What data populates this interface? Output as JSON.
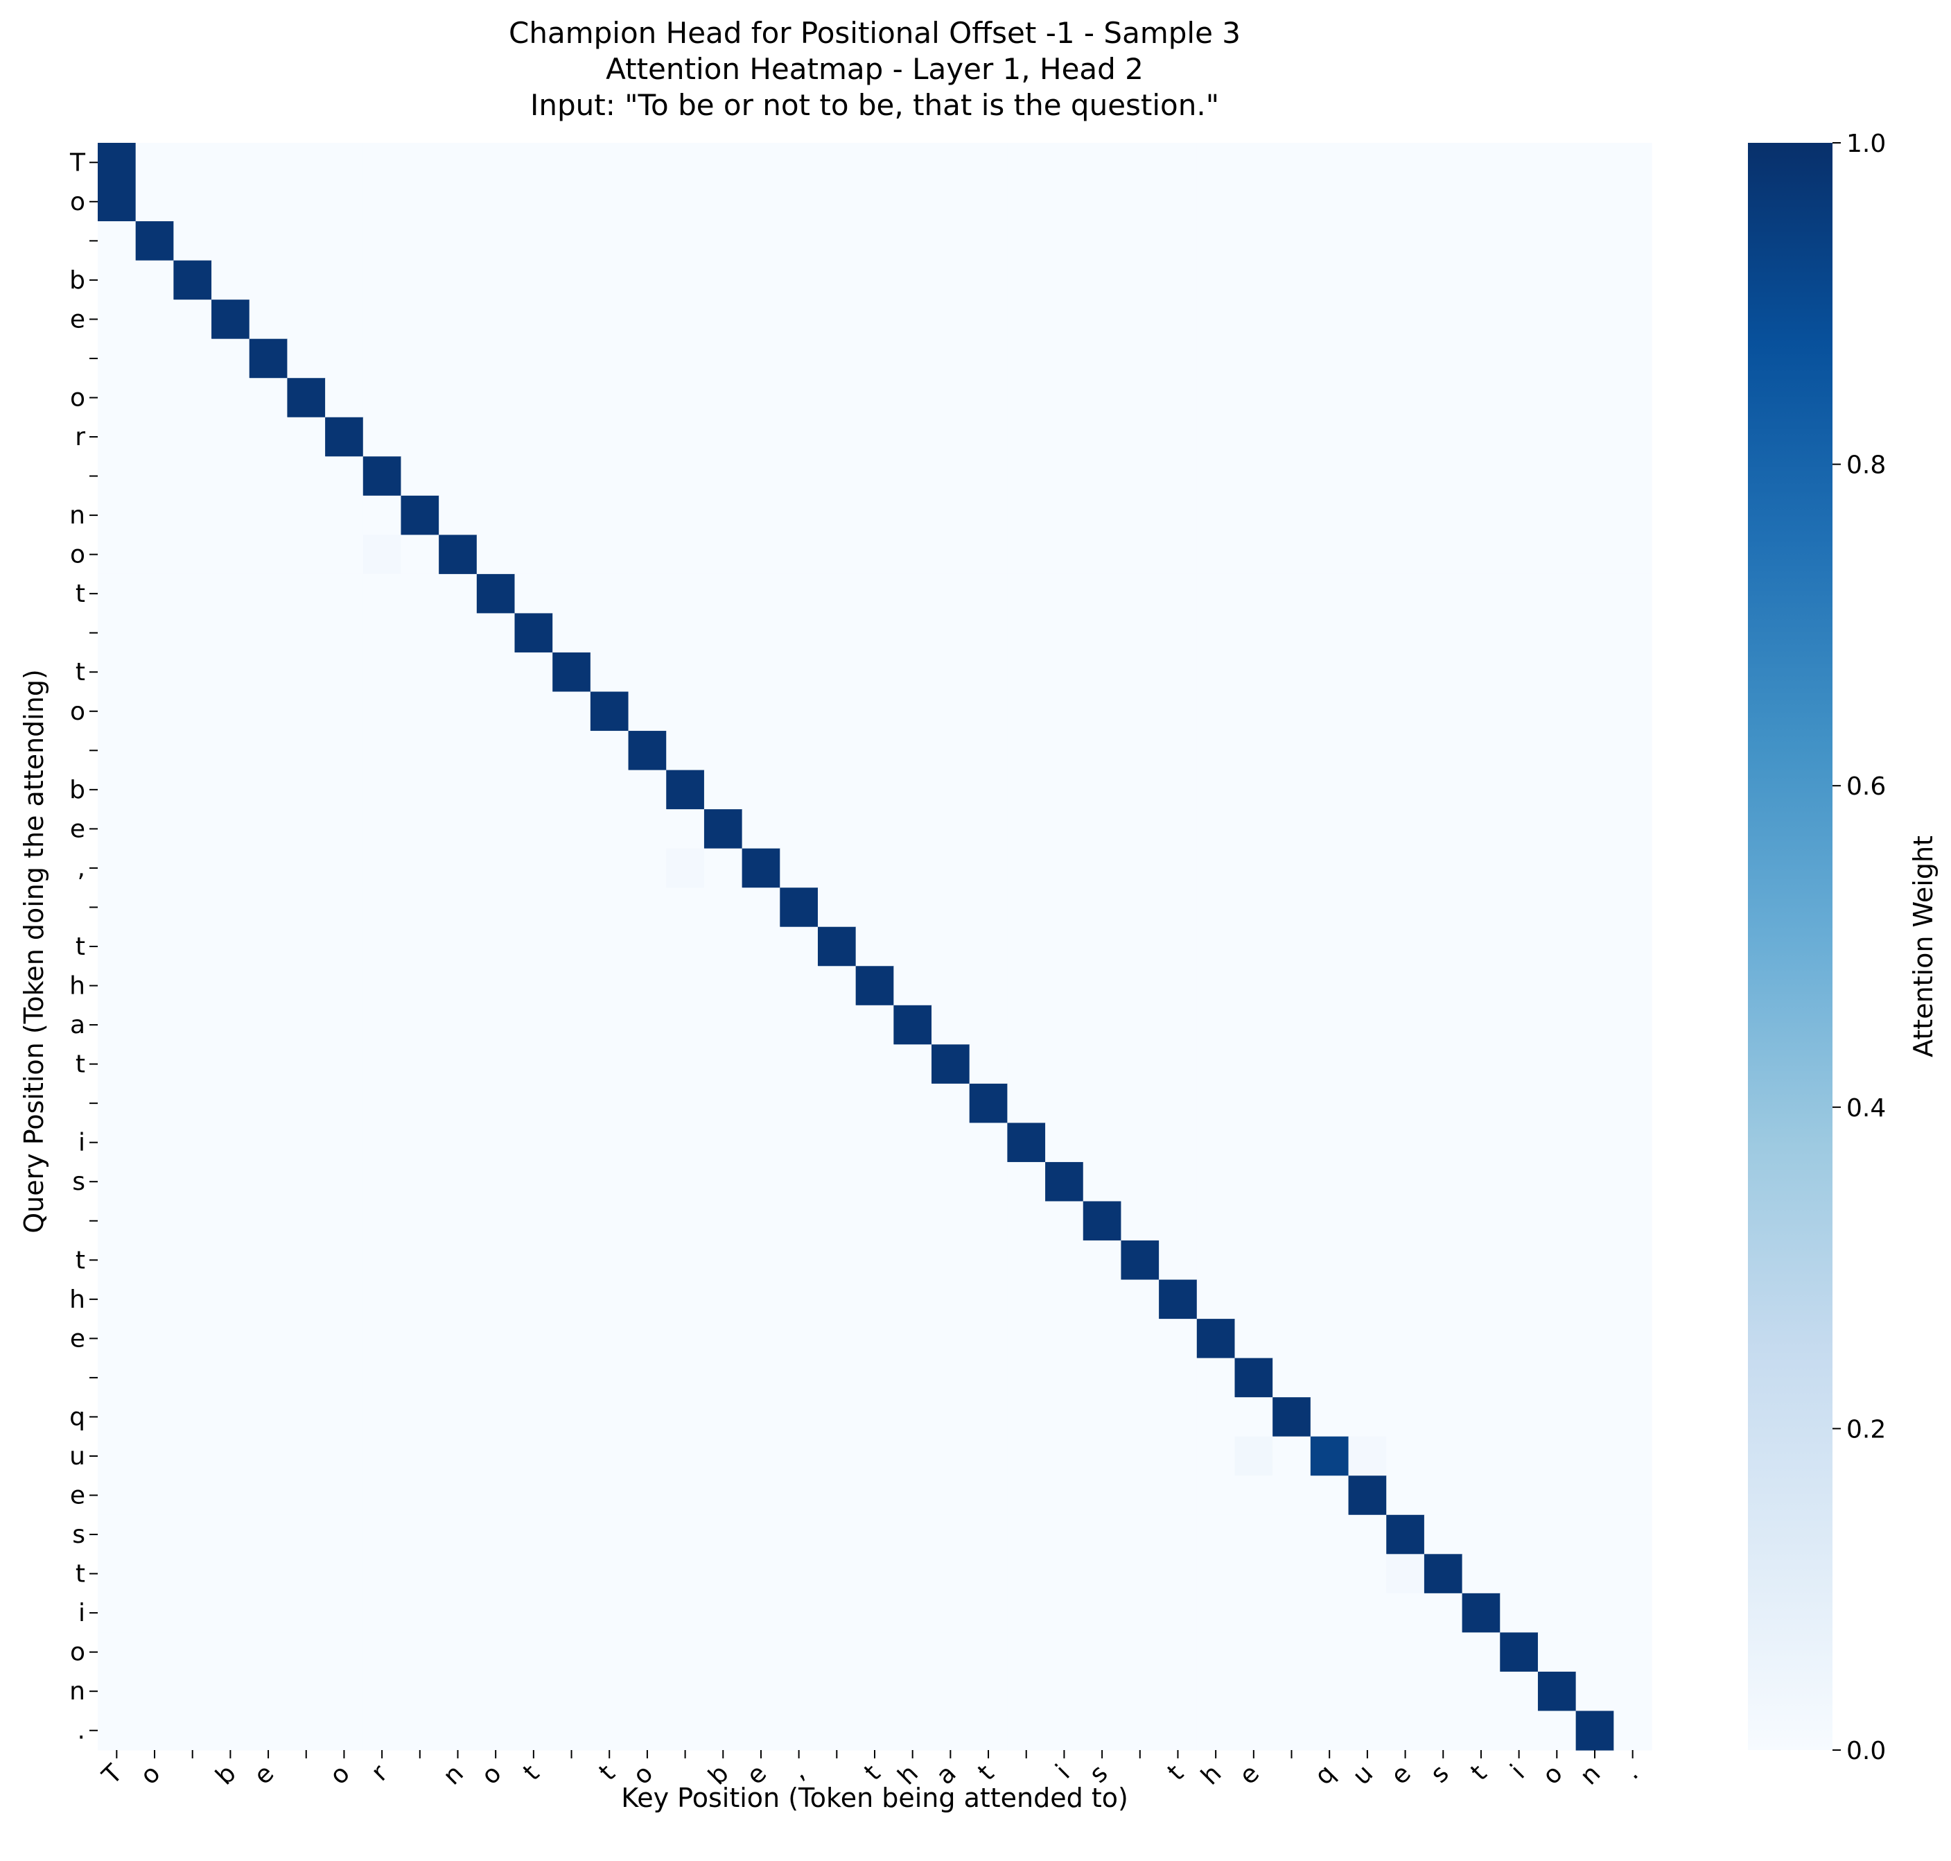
{
  "chart_data": {
    "type": "heatmap",
    "title_lines": [
      "Champion Head for Positional Offset -1 - Sample 3",
      "Attention Heatmap - Layer 1, Head 2",
      "Input: \"To be or not to be, that is the question.\""
    ],
    "xlabel": "Key Position (Token being attended to)",
    "ylabel": "Query Position (Token doing the attending)",
    "colorbar_label": "Attention Weight",
    "colorbar_ticks": [
      "0.0",
      "0.2",
      "0.4",
      "0.6",
      "0.8",
      "1.0"
    ],
    "colormap": "Blues",
    "value_range": [
      0,
      1
    ],
    "tokens": [
      "T",
      "o",
      " ",
      "b",
      "e",
      " ",
      "o",
      "r",
      " ",
      "n",
      "o",
      "t",
      " ",
      "t",
      "o",
      " ",
      "b",
      "e",
      ",",
      " ",
      "t",
      "h",
      "a",
      "t",
      " ",
      "i",
      "s",
      " ",
      "t",
      "h",
      "e",
      " ",
      "q",
      "u",
      "e",
      "s",
      "t",
      "i",
      "o",
      "n",
      "."
    ],
    "pattern": "previous-token attention: query i attends key i-1 with weight ~1.0; query 0 attends key 0",
    "near_one_weight": 0.98,
    "weaker_cells": [
      {
        "query": 33,
        "key": 32,
        "value": 0.93
      }
    ],
    "faint_cells": [
      {
        "query": 10,
        "key": 7,
        "value": 0.02
      },
      {
        "query": 18,
        "key": 15,
        "value": 0.02
      },
      {
        "query": 33,
        "key": 30,
        "value": 0.03
      },
      {
        "query": 33,
        "key": 33,
        "value": 0.02
      },
      {
        "query": 36,
        "key": 34,
        "value": 0.02
      }
    ]
  }
}
